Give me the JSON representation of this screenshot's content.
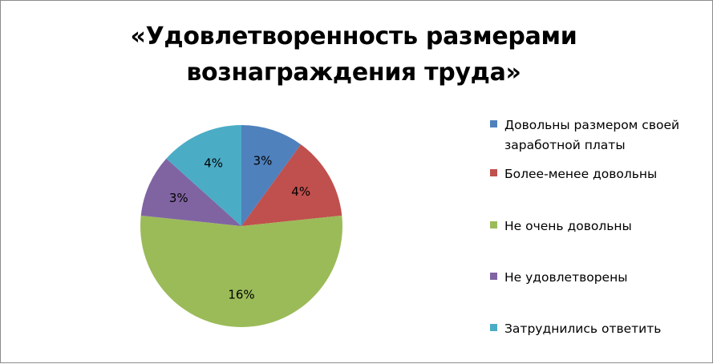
{
  "chart_data": {
    "type": "pie",
    "title_lines": [
      "«Удовлетворенность размерами",
      "вознаграждения труда»"
    ],
    "categories": [
      "Довольны размером своей заработной платы",
      "Более-менее довольны",
      "Не очень довольны",
      "Не удовлетворены",
      "Затруднились ответить"
    ],
    "legend_lines": [
      [
        "Довольны размером своей",
        "заработной платы"
      ],
      [
        "Более-менее довольны"
      ],
      [
        "Не очень довольны"
      ],
      [
        "Не удовлетворены"
      ],
      [
        "Затруднились ответить"
      ]
    ],
    "values": [
      3,
      4,
      16,
      3,
      4
    ],
    "data_labels": [
      "3%",
      "4%",
      "16%",
      "3%",
      "4%"
    ],
    "colors": [
      "#4f81bd",
      "#c0504d",
      "#9bbb59",
      "#8064a2",
      "#4bacc6"
    ],
    "legend_position": "right"
  }
}
